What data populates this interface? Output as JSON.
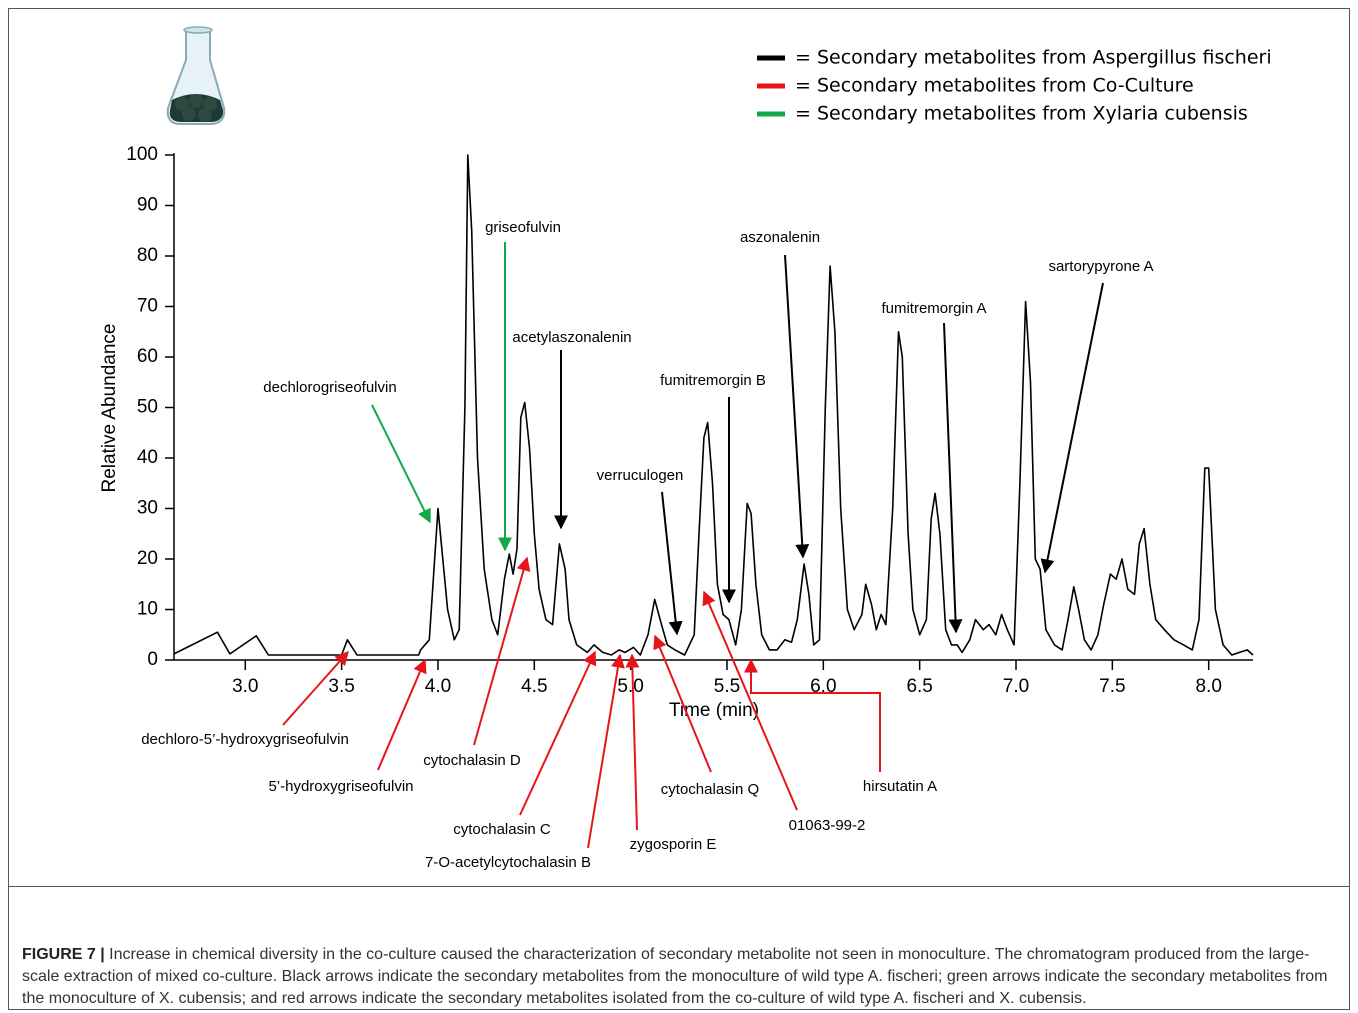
{
  "chart_data": {
    "type": "line",
    "ylabel": "Relative Abundance",
    "xlabel": "Time (min)",
    "xlim": [
      2.63,
      8.23
    ],
    "ylim": [
      0,
      100
    ],
    "xticks": [
      {
        "value": 3,
        "label": "3.0"
      },
      3.5,
      {
        "value": 4,
        "label": "4.0"
      },
      4.5,
      {
        "value": 5,
        "label": "5.0"
      },
      5.5,
      {
        "value": 6,
        "label": "6.0"
      },
      6.5,
      {
        "value": 7,
        "label": "7.0"
      },
      7.5,
      {
        "value": 8,
        "label": "8.0"
      }
    ],
    "yticks": [
      0,
      10,
      20,
      30,
      40,
      50,
      60,
      70,
      80,
      90,
      100
    ],
    "x": [
      2.63,
      2.855,
      2.92,
      3.057,
      3.12,
      3.5,
      3.53,
      3.58,
      3.9,
      3.91,
      3.955,
      4.0,
      4.05,
      4.085,
      4.11,
      4.14,
      4.155,
      4.175,
      4.205,
      4.24,
      4.28,
      4.31,
      4.345,
      4.37,
      4.39,
      4.41,
      4.43,
      4.45,
      4.475,
      4.5,
      4.525,
      4.56,
      4.595,
      4.63,
      4.66,
      4.68,
      4.72,
      4.775,
      4.81,
      4.855,
      4.9,
      4.94,
      4.97,
      5.015,
      5.05,
      5.09,
      5.125,
      5.16,
      5.19,
      5.23,
      5.28,
      5.33,
      5.355,
      5.38,
      5.4,
      5.425,
      5.45,
      5.48,
      5.51,
      5.545,
      5.575,
      5.605,
      5.625,
      5.65,
      5.68,
      5.72,
      5.76,
      5.8,
      5.835,
      5.865,
      5.9,
      5.925,
      5.95,
      5.98,
      6.01,
      6.035,
      6.06,
      6.09,
      6.125,
      6.16,
      6.2,
      6.22,
      6.25,
      6.275,
      6.3,
      6.325,
      6.36,
      6.39,
      6.41,
      6.44,
      6.465,
      6.5,
      6.535,
      6.56,
      6.58,
      6.605,
      6.635,
      6.665,
      6.695,
      6.72,
      6.76,
      6.79,
      6.83,
      6.86,
      6.895,
      6.925,
      6.955,
      6.99,
      7.02,
      7.05,
      7.075,
      7.1,
      7.125,
      7.155,
      7.2,
      7.24,
      7.27,
      7.3,
      7.325,
      7.355,
      7.39,
      7.425,
      7.455,
      7.49,
      7.52,
      7.55,
      7.58,
      7.615,
      7.64,
      7.665,
      7.695,
      7.725,
      7.77,
      7.82,
      7.87,
      7.915,
      7.95,
      7.98,
      8.0,
      8.035,
      8.075,
      8.12,
      8.16,
      8.2,
      8.23
    ],
    "series": [
      {
        "color": "#000000",
        "values": [
          1.2,
          5.5,
          1.2,
          4.8,
          1,
          1,
          4,
          1,
          1,
          2,
          4,
          30,
          10,
          4,
          6,
          50,
          100,
          85,
          40,
          18,
          8,
          5,
          16,
          21,
          17,
          22,
          48,
          51,
          42,
          25,
          14,
          8,
          7,
          23,
          18,
          8,
          3,
          1.5,
          3,
          1.5,
          1,
          2,
          1.5,
          2.5,
          1,
          5,
          12,
          7,
          3,
          2,
          1,
          5,
          25,
          44,
          47,
          35,
          15,
          9,
          8,
          3,
          10,
          31,
          29,
          15,
          5,
          2,
          2,
          4,
          3.5,
          8,
          19,
          13,
          3,
          4,
          50,
          78,
          65,
          30,
          10,
          6,
          9,
          15,
          11,
          6,
          9,
          7,
          30,
          65,
          60,
          25,
          10,
          5,
          8,
          28,
          33,
          25,
          6,
          3,
          3,
          1.5,
          4,
          8,
          6,
          7,
          5,
          9,
          6,
          3,
          35,
          71,
          55,
          20,
          18,
          6,
          3,
          2,
          8,
          14.5,
          10,
          4,
          2,
          5,
          11,
          17,
          16,
          20,
          14,
          13,
          23,
          26,
          15,
          8,
          6,
          4,
          3,
          2,
          8,
          38,
          38,
          10,
          3,
          1,
          1.5,
          2,
          1
        ]
      }
    ],
    "legend": [
      {
        "label": "= Secondary metabolites from Aspergillus fischeri",
        "color": "#000000"
      },
      {
        "label": "= Secondary metabolites from Co-Culture",
        "color": "#e8141b"
      },
      {
        "label": "= Secondary metabolites from Xylaria cubensis",
        "color": "#12a84a"
      }
    ],
    "annotations": [
      {
        "text": "dechlorogriseofulvin",
        "color": "#12a84a"
      },
      {
        "text": "griseofulvin",
        "color": "#12a84a"
      },
      {
        "text": "acetylaszonalenin",
        "color": "#000000"
      },
      {
        "text": "verruculogen",
        "color": "#000000"
      },
      {
        "text": "fumitremorgin B",
        "color": "#000000"
      },
      {
        "text": "aszonalenin",
        "color": "#000000"
      },
      {
        "text": "fumitremorgin A",
        "color": "#000000"
      },
      {
        "text": "sartorypyrone A",
        "color": "#000000"
      },
      {
        "text": "dechloro-5’-hydroxygriseofulvin",
        "color": "#e8141b"
      },
      {
        "text": "5’-hydroxygriseofulvin",
        "color": "#e8141b"
      },
      {
        "text": "cytochalasin D",
        "color": "#e8141b"
      },
      {
        "text": "cytochalasin C",
        "color": "#e8141b"
      },
      {
        "text": "7-O-acetylcytochalasin B",
        "color": "#e8141b"
      },
      {
        "text": "zygosporin E",
        "color": "#e8141b"
      },
      {
        "text": "cytochalasin Q",
        "color": "#e8141b"
      },
      {
        "text": "01063-99-2",
        "color": "#e8141b"
      },
      {
        "text": "hirsutatin A",
        "color": "#e8141b"
      }
    ]
  },
  "caption": {
    "label": "FIGURE 7 |",
    "text": "Increase in chemical diversity in the co-culture caused the characterization of secondary metabolite not seen in monoculture. The chromatogram produced from the large-scale extraction of mixed co-culture. Black arrows indicate the secondary metabolites from the monoculture of wild type A. fischeri; green arrows indicate the secondary metabolites from the monoculture of X. cubensis; and red arrows indicate the secondary metabolites isolated from the co-culture of wild type A. fischeri and X. cubensis."
  }
}
